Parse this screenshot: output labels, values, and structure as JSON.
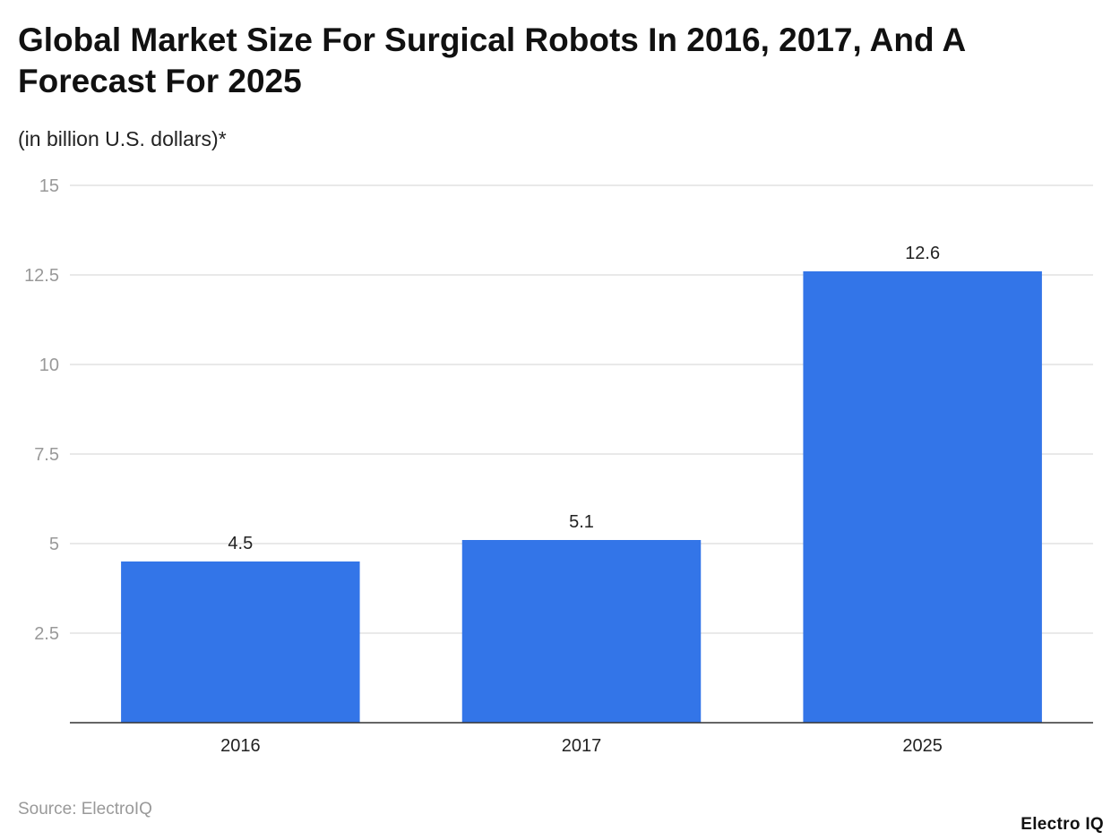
{
  "chart_data": {
    "type": "bar",
    "title": "Global Market Size For Surgical Robots In 2016, 2017, And A Forecast For 2025",
    "subtitle": "(in billion U.S. dollars)*",
    "categories": [
      "2016",
      "2017",
      "2025"
    ],
    "values": [
      4.5,
      5.1,
      12.6
    ],
    "data_labels": [
      "4.5",
      "5.1",
      "12.6"
    ],
    "ylim": [
      0,
      15
    ],
    "yticks": [
      2.5,
      5,
      7.5,
      10,
      12.5,
      15
    ],
    "ytick_labels": [
      "2.5",
      "5",
      "7.5",
      "10",
      "12.5",
      "15"
    ],
    "grid": true,
    "bar_color": "#3375e8",
    "source": "Source: ElectroIQ"
  },
  "brand": {
    "logo_text": "Electro IQ"
  }
}
